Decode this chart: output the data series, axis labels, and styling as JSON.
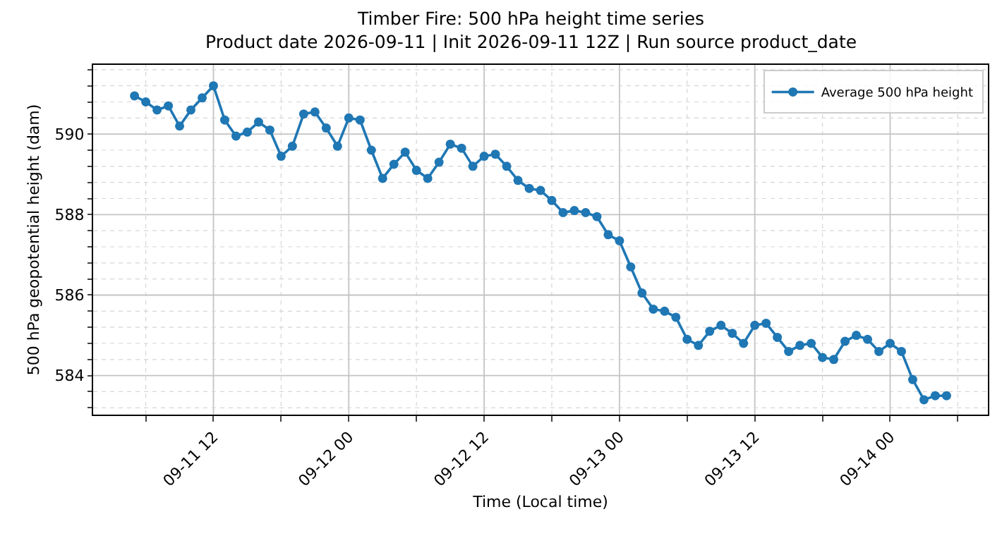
{
  "chart_data": {
    "type": "line",
    "title": "Timber Fire: 500 hPa height time series",
    "subtitle": "Product date 2026-09-11 | Init 2026-09-11 12Z | Run source product_date",
    "xlabel": "Time (Local time)",
    "ylabel": "500 hPa geopotential height (dam)",
    "x": [
      "2026-09-11T05:00",
      "2026-09-11T06:00",
      "2026-09-11T07:00",
      "2026-09-11T08:00",
      "2026-09-11T09:00",
      "2026-09-11T10:00",
      "2026-09-11T11:00",
      "2026-09-11T12:00",
      "2026-09-11T13:00",
      "2026-09-11T14:00",
      "2026-09-11T15:00",
      "2026-09-11T16:00",
      "2026-09-11T17:00",
      "2026-09-11T18:00",
      "2026-09-11T19:00",
      "2026-09-11T20:00",
      "2026-09-11T21:00",
      "2026-09-11T22:00",
      "2026-09-11T23:00",
      "2026-09-12T00:00",
      "2026-09-12T01:00",
      "2026-09-12T02:00",
      "2026-09-12T03:00",
      "2026-09-12T04:00",
      "2026-09-12T05:00",
      "2026-09-12T06:00",
      "2026-09-12T07:00",
      "2026-09-12T08:00",
      "2026-09-12T09:00",
      "2026-09-12T10:00",
      "2026-09-12T11:00",
      "2026-09-12T12:00",
      "2026-09-12T13:00",
      "2026-09-12T14:00",
      "2026-09-12T15:00",
      "2026-09-12T16:00",
      "2026-09-12T17:00",
      "2026-09-12T18:00",
      "2026-09-12T19:00",
      "2026-09-12T20:00",
      "2026-09-12T21:00",
      "2026-09-12T22:00",
      "2026-09-12T23:00",
      "2026-09-13T00:00",
      "2026-09-13T01:00",
      "2026-09-13T02:00",
      "2026-09-13T03:00",
      "2026-09-13T04:00",
      "2026-09-13T05:00",
      "2026-09-13T06:00",
      "2026-09-13T07:00",
      "2026-09-13T08:00",
      "2026-09-13T09:00",
      "2026-09-13T10:00",
      "2026-09-13T11:00",
      "2026-09-13T12:00",
      "2026-09-13T13:00",
      "2026-09-13T14:00",
      "2026-09-13T15:00",
      "2026-09-13T16:00",
      "2026-09-13T17:00",
      "2026-09-13T18:00",
      "2026-09-13T19:00",
      "2026-09-13T20:00",
      "2026-09-13T21:00",
      "2026-09-13T22:00",
      "2026-09-13T23:00",
      "2026-09-14T00:00",
      "2026-09-14T01:00",
      "2026-09-14T02:00",
      "2026-09-14T03:00",
      "2026-09-14T04:00",
      "2026-09-14T05:00"
    ],
    "series": [
      {
        "name": "Average 500 hPa height",
        "color": "#1f77b4",
        "values": [
          590.95,
          590.8,
          590.6,
          590.7,
          590.2,
          590.6,
          590.9,
          591.2,
          590.35,
          589.95,
          590.05,
          590.3,
          590.1,
          589.45,
          589.7,
          590.5,
          590.55,
          590.15,
          589.7,
          590.4,
          590.35,
          589.6,
          588.9,
          589.25,
          589.55,
          589.1,
          588.9,
          589.3,
          589.75,
          589.65,
          589.2,
          589.45,
          589.5,
          589.2,
          588.85,
          588.65,
          588.6,
          588.35,
          588.05,
          588.1,
          588.05,
          587.95,
          587.5,
          587.35,
          586.7,
          586.05,
          585.65,
          585.6,
          585.45,
          584.9,
          584.75,
          585.1,
          585.25,
          585.05,
          584.8,
          585.25,
          585.3,
          584.95,
          584.6,
          584.75,
          584.8,
          584.45,
          584.4,
          584.85,
          585.0,
          584.9,
          584.6,
          584.8,
          584.6,
          583.9,
          583.4,
          583.5,
          583.5
        ]
      }
    ],
    "xlim": [
      "2026-09-11T01:20",
      "2026-09-14T08:40"
    ],
    "xticks": [
      {
        "value": "2026-09-11T06:00",
        "label": null
      },
      {
        "value": "2026-09-11T12:00",
        "label": "09-11 12"
      },
      {
        "value": "2026-09-11T18:00",
        "label": null
      },
      {
        "value": "2026-09-12T00:00",
        "label": "09-12 00"
      },
      {
        "value": "2026-09-12T06:00",
        "label": null
      },
      {
        "value": "2026-09-12T12:00",
        "label": "09-12 12"
      },
      {
        "value": "2026-09-12T18:00",
        "label": null
      },
      {
        "value": "2026-09-13T00:00",
        "label": "09-13 00"
      },
      {
        "value": "2026-09-13T06:00",
        "label": null
      },
      {
        "value": "2026-09-13T12:00",
        "label": "09-13 12"
      },
      {
        "value": "2026-09-13T18:00",
        "label": null
      },
      {
        "value": "2026-09-14T00:00",
        "label": "09-14 00"
      },
      {
        "value": "2026-09-14T06:00",
        "label": null
      }
    ],
    "ylim": [
      583.03,
      591.72
    ],
    "yticks": [
      {
        "value": 583.2,
        "label": null
      },
      {
        "value": 583.6,
        "label": null
      },
      584,
      {
        "value": 584.4,
        "label": null
      },
      {
        "value": 584.8,
        "label": null
      },
      {
        "value": 585.2,
        "label": null
      },
      {
        "value": 585.6,
        "label": null
      },
      586,
      {
        "value": 586.4,
        "label": null
      },
      {
        "value": 586.8,
        "label": null
      },
      {
        "value": 587.2,
        "label": null
      },
      {
        "value": 587.6,
        "label": null
      },
      588,
      {
        "value": 588.4,
        "label": null
      },
      {
        "value": 588.8,
        "label": null
      },
      {
        "value": 589.2,
        "label": null
      },
      {
        "value": 589.6,
        "label": null
      },
      590,
      {
        "value": 590.4,
        "label": null
      },
      {
        "value": 590.8,
        "label": null
      },
      {
        "value": 591.2,
        "label": null
      },
      {
        "value": 591.6,
        "label": null
      }
    ],
    "grid": true,
    "legend": "top right",
    "marker": "circle",
    "line_style": "solid"
  }
}
